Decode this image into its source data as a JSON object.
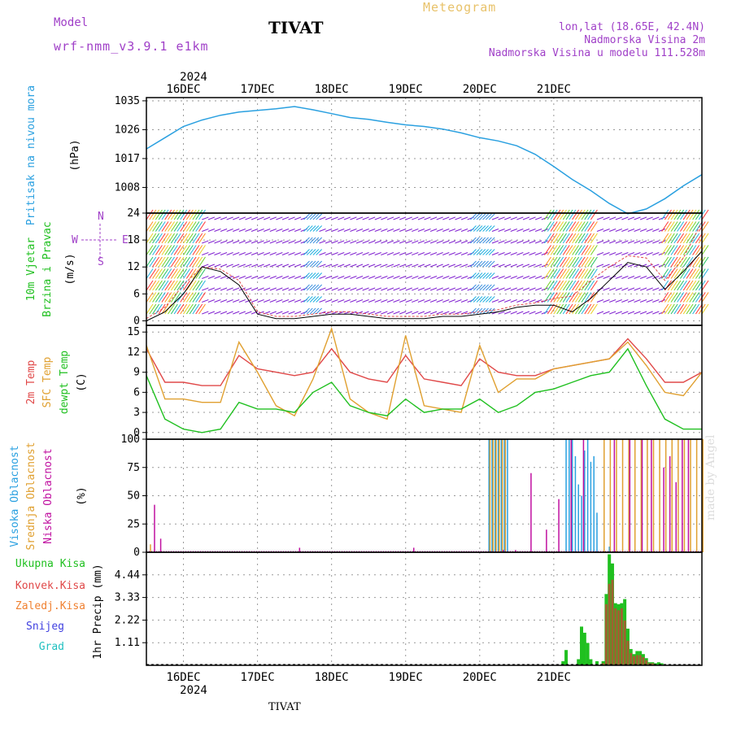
{
  "header": {
    "meteogram": "Meteogram",
    "model_label": "Model",
    "model_name": "wrf-nmm_v3.9.1 e1km",
    "station": "TIVAT",
    "coords": "lon,lat (18.65E, 42.4N)",
    "elevation": "Nadmorska Visina 2m",
    "model_elevation": "Nadmorska Visina u modelu 111.528m",
    "footer_station": "TIVAT",
    "made_by": "made by Angel"
  },
  "colors": {
    "pressure": "#2aa0e0",
    "temp2m": "#e04848",
    "sfc": "#e0a030",
    "dewpt": "#20c020",
    "high_cloud": "#2aa0e0",
    "mid_cloud": "#e0a030",
    "low_cloud": "#c010a0",
    "wind_purple": "#8020d0",
    "precip_total": "#20c020",
    "precip_conv": "#e04848",
    "precip_frz": "#f08030",
    "snow": "#4040e0",
    "hail": "#20c0c0"
  },
  "chart_data": [
    {
      "id": "pressure",
      "type": "line",
      "ylabel_lines": [
        "Pritisak na nivou mora",
        "(hPa)"
      ],
      "yticks": [
        1008,
        1017,
        1026,
        1035
      ],
      "ylim": [
        1000,
        1036
      ],
      "x": [
        0,
        6,
        12,
        18,
        24,
        30,
        36,
        42,
        48,
        54,
        60,
        66,
        72,
        78,
        84,
        90,
        96,
        102,
        108,
        114,
        120,
        126,
        132,
        138,
        144,
        150,
        156,
        162,
        168,
        174,
        180
      ],
      "series": [
        {
          "values": [
            1020,
            1023.5,
            1027,
            1029,
            1030.5,
            1031.5,
            1032,
            1032.5,
            1033.2,
            1032.2,
            1031,
            1029.8,
            1029.2,
            1028.3,
            1027.5,
            1027,
            1026.2,
            1025,
            1023.5,
            1022.5,
            1021,
            1018.3,
            1014.5,
            1010.5,
            1007,
            1003,
            999.8,
            1001.3,
            1004.5,
            1008.5,
            1012
          ]
        }
      ]
    },
    {
      "id": "wind",
      "type": "line",
      "ylabel_lines": [
        "10m Vjetar",
        "Brzina i Pravac",
        "(m/s)"
      ],
      "compass": {
        "n": "N",
        "s": "S",
        "e": "E",
        "w": "W"
      },
      "yticks": [
        0,
        6,
        12,
        18,
        24
      ],
      "ylim": [
        -1,
        24
      ],
      "x": [
        0,
        6,
        12,
        18,
        24,
        30,
        36,
        42,
        48,
        54,
        60,
        66,
        72,
        78,
        84,
        90,
        96,
        102,
        108,
        114,
        120,
        126,
        132,
        138,
        144,
        150,
        156,
        162,
        168,
        174,
        180
      ],
      "series": [
        {
          "values": [
            0.5,
            3,
            8,
            12,
            11.5,
            9,
            2,
            1,
            1,
            1.5,
            2,
            2,
            1.5,
            1,
            1,
            1,
            1.5,
            1.5,
            2,
            2.5,
            3.5,
            4,
            5,
            5.5,
            9,
            12,
            14.5,
            14,
            9,
            14,
            22
          ]
        },
        {
          "values": [
            0,
            2,
            6,
            12,
            11,
            8,
            1.5,
            0.5,
            0.5,
            1,
            1.5,
            1.5,
            1,
            0.5,
            0.5,
            0.5,
            1,
            1,
            1.5,
            2,
            3,
            3.5,
            3.5,
            2,
            5,
            9,
            13,
            12,
            7,
            11,
            15.5
          ]
        }
      ]
    },
    {
      "id": "temperature",
      "type": "line",
      "ylabel_lines": [
        "2m Temp",
        "SFC Temp",
        "dewpt Temp",
        "(C)"
      ],
      "yticks": [
        0,
        3,
        6,
        9,
        12,
        15
      ],
      "ylim": [
        -1,
        16
      ],
      "x": [
        0,
        6,
        12,
        18,
        24,
        30,
        36,
        42,
        48,
        54,
        60,
        66,
        72,
        78,
        84,
        90,
        96,
        102,
        108,
        114,
        120,
        126,
        132,
        138,
        144,
        150,
        156,
        162,
        168,
        174,
        180
      ],
      "series": [
        {
          "values": [
            12.5,
            7.5,
            7.5,
            7,
            7,
            11.5,
            9.5,
            9,
            8.5,
            9,
            12.5,
            9,
            8,
            7.5,
            11.5,
            8,
            7.5,
            7,
            11,
            9,
            8.5,
            8.5,
            9.5,
            10,
            10.5,
            11,
            14,
            11,
            7.5,
            7.5,
            9
          ]
        },
        {
          "values": [
            13,
            5,
            5,
            4.5,
            4.5,
            13.5,
            9,
            4,
            2.5,
            8,
            15.5,
            5,
            3,
            2,
            14.5,
            4,
            3.5,
            3,
            13,
            6,
            8,
            8,
            9.5,
            10,
            10.5,
            11,
            13.5,
            10,
            6,
            5.5,
            9
          ]
        },
        {
          "values": [
            8.5,
            2,
            0.5,
            0,
            0.5,
            4.5,
            3.5,
            3.5,
            3,
            6,
            7.5,
            4,
            3,
            2.5,
            5,
            3,
            3.5,
            3.5,
            5,
            3,
            4,
            6,
            6.5,
            7.5,
            8.5,
            9,
            12.5,
            7,
            2,
            0.5,
            0.5
          ]
        }
      ]
    },
    {
      "id": "cloud",
      "type": "bar",
      "ylabel_lines": [
        "Visoka Oblacnost",
        "Srednja Oblacnost",
        "Niska Oblacnost",
        "(%)"
      ],
      "yticks": [
        0,
        25,
        50,
        75,
        100
      ],
      "ylim": [
        0,
        100
      ],
      "series": [
        {
          "values": [
            [
              111,
              100
            ],
            [
              112,
              100
            ],
            [
              113,
              100
            ],
            [
              114,
              100
            ],
            [
              115,
              100
            ],
            [
              116,
              100
            ],
            [
              117,
              100
            ],
            [
              136,
              100
            ],
            [
              137,
              100
            ],
            [
              138,
              100
            ],
            [
              139,
              85
            ],
            [
              140,
              60
            ],
            [
              141,
              50
            ],
            [
              142,
              90
            ],
            [
              143,
              100
            ],
            [
              144,
              80
            ],
            [
              145,
              85
            ],
            [
              146,
              35
            ],
            [
              150,
              5
            ]
          ]
        },
        {
          "values": [
            [
              111,
              100
            ],
            [
              112,
              100
            ],
            [
              113,
              100
            ],
            [
              114,
              100
            ],
            [
              115,
              100
            ],
            [
              116,
              100
            ],
            [
              148,
              100
            ],
            [
              150,
              100
            ],
            [
              152,
              100
            ],
            [
              154,
              100
            ],
            [
              156,
              100
            ],
            [
              158,
              100
            ],
            [
              160,
              100
            ],
            [
              162,
              100
            ],
            [
              164,
              100
            ],
            [
              166,
              100
            ],
            [
              168,
              100
            ],
            [
              170,
              100
            ],
            [
              172,
              100
            ],
            [
              174,
              100
            ],
            [
              176,
              100
            ],
            [
              178,
              100
            ],
            [
              180,
              100
            ],
            [
              1,
              7
            ]
          ]
        },
        {
          "values": [
            [
              2,
              42
            ],
            [
              4,
              12
            ],
            [
              49,
              4
            ],
            [
              86,
              4
            ],
            [
              115,
              2
            ],
            [
              119,
              2
            ],
            [
              124,
              70
            ],
            [
              129,
              20
            ],
            [
              133,
              47
            ],
            [
              137,
              100
            ],
            [
              141,
              100
            ],
            [
              151,
              100
            ],
            [
              156,
              100
            ],
            [
              160,
              100
            ],
            [
              163,
              100
            ],
            [
              167,
              75
            ],
            [
              169,
              85
            ],
            [
              171,
              62
            ],
            [
              173,
              100
            ],
            [
              175,
              100
            ]
          ]
        }
      ]
    },
    {
      "id": "precip",
      "type": "bar",
      "ylabel": "1hr Precip (mm)",
      "legend": [
        "Ukupna Kisa",
        "Konvek.Kisa",
        "Zaledj.Kisa",
        "Snijeg",
        "Grad"
      ],
      "yticks": [
        "1.11",
        "2.22",
        "3.33",
        "4.44"
      ],
      "ylim": [
        0,
        5.55
      ],
      "series": [
        {
          "values": [
            [
              135,
              0.2
            ],
            [
              136,
              0.75
            ],
            [
              140,
              0.3
            ],
            [
              141,
              1.9
            ],
            [
              142,
              1.6
            ],
            [
              143,
              1.1
            ],
            [
              144,
              0.3
            ],
            [
              146,
              0.2
            ],
            [
              148,
              0.2
            ],
            [
              149,
              3.5
            ],
            [
              150,
              5.45
            ],
            [
              151,
              5.0
            ],
            [
              152,
              3.05
            ],
            [
              153,
              3.0
            ],
            [
              154,
              3.05
            ],
            [
              155,
              3.25
            ],
            [
              156,
              1.8
            ],
            [
              157,
              0.8
            ],
            [
              158,
              0.55
            ],
            [
              159,
              0.7
            ],
            [
              160,
              0.7
            ],
            [
              161,
              0.55
            ],
            [
              162,
              0.35
            ],
            [
              163,
              0.15
            ],
            [
              164,
              0.15
            ],
            [
              165,
              0.1
            ],
            [
              166,
              0.15
            ],
            [
              167,
              0.1
            ]
          ]
        },
        {
          "values": [
            [
              148,
              0.1
            ],
            [
              149,
              3.0
            ],
            [
              150,
              4.0
            ],
            [
              151,
              4.2
            ],
            [
              152,
              2.8
            ],
            [
              153,
              2.7
            ],
            [
              154,
              2.8
            ],
            [
              155,
              2.2
            ],
            [
              156,
              1.2
            ],
            [
              157,
              0.6
            ],
            [
              158,
              0.45
            ],
            [
              159,
              0.5
            ],
            [
              160,
              0.5
            ],
            [
              161,
              0.4
            ],
            [
              162,
              0.25
            ],
            [
              163,
              0.1
            ],
            [
              164,
              0.1
            ]
          ]
        }
      ]
    }
  ],
  "dates": {
    "year": "2024",
    "labels": [
      "16DEC",
      "17DEC",
      "18DEC",
      "19DEC",
      "20DEC",
      "21DEC"
    ],
    "label_hours": [
      12,
      36,
      60,
      84,
      108,
      132
    ]
  }
}
